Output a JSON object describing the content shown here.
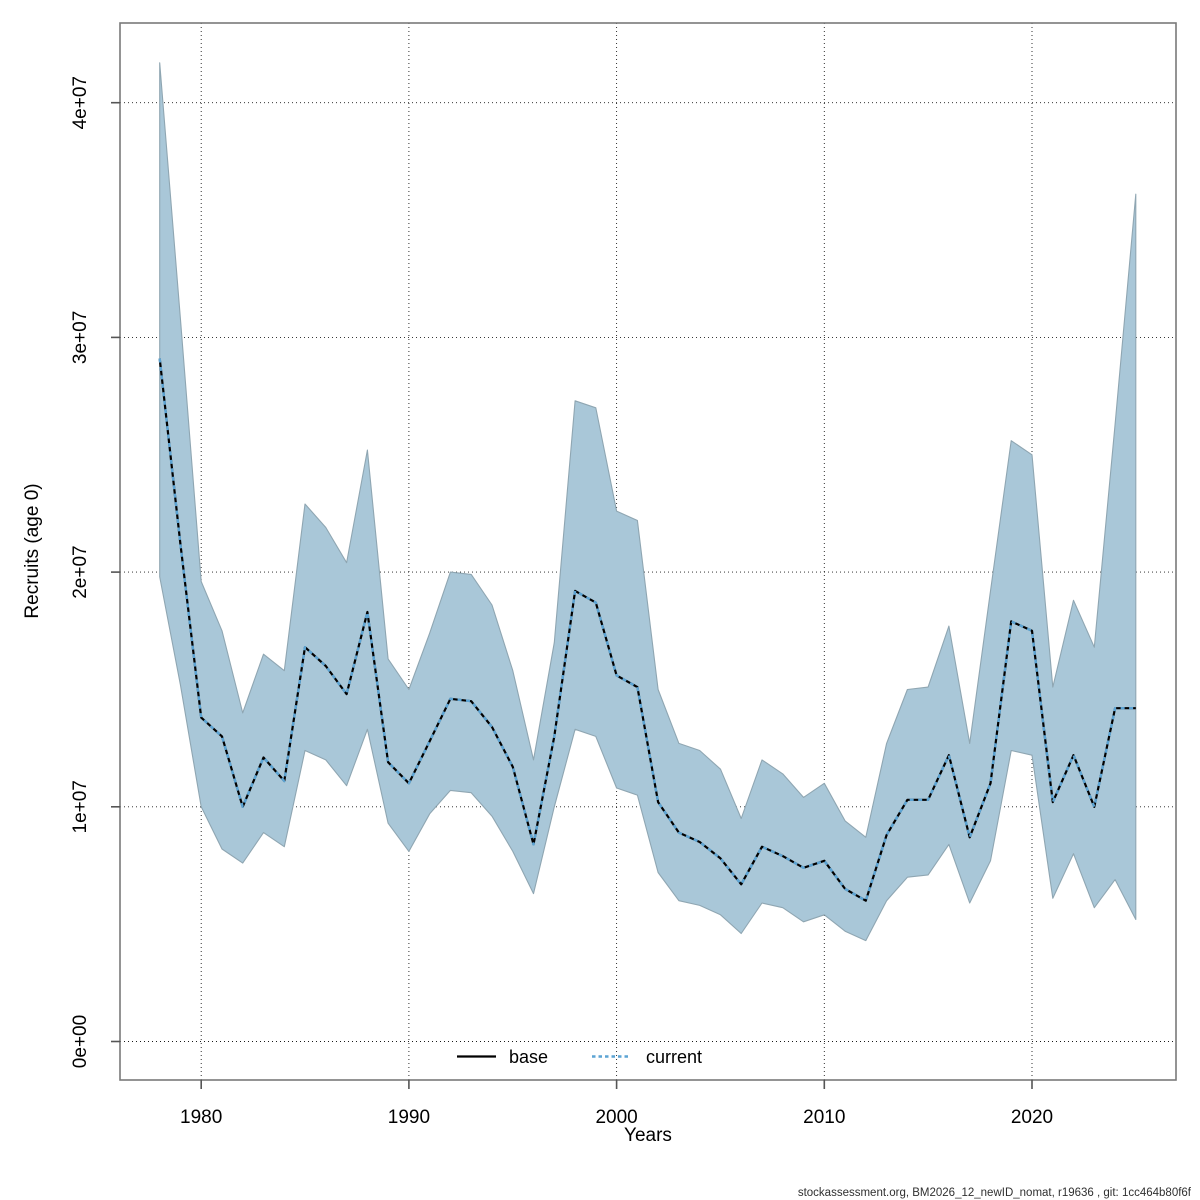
{
  "figure": {
    "background": "#ffffff",
    "footer_text": "stockassessment.org, BM2026_12_newID_nomat, r19636 , git: 1cc464b80f6f"
  },
  "axes": {
    "xlabel": "Years",
    "ylabel": "Recruits (age 0)",
    "x_tick_years": [
      1980,
      1990,
      2000,
      2010,
      2020
    ],
    "x_tick_labels": [
      "1980",
      "1990",
      "2000",
      "2010",
      "2020"
    ],
    "y_tick_millions": [
      0,
      10,
      20,
      30,
      40
    ],
    "y_tick_labels": [
      "0e+00",
      "1e+07",
      "2e+07",
      "3e+07",
      "4e+07"
    ]
  },
  "legend": {
    "items": [
      {
        "label": "base",
        "line_style": "solid",
        "color": "#000000"
      },
      {
        "label": "current",
        "line_style": "dotted",
        "color": "#5ca4d4"
      }
    ]
  },
  "colors": {
    "band_fill": "#a9c7d8",
    "band_edge": "#8fa6b2",
    "grid": "#1a1a1a",
    "box": "#7a7a7a",
    "tick": "#555555",
    "base_line": "#000000",
    "current_line": "#5ca4d4"
  },
  "chart_data": {
    "type": "line",
    "title": "",
    "xlabel": "Years",
    "ylabel": "Recruits (age 0)",
    "x_range_years": [
      1976.1,
      2026.9
    ],
    "y_range": [
      -1600000,
      43400000
    ],
    "grid": true,
    "legend_position": "bottom-center",
    "units": "recruits (values in millions, i.e. 29.1 = 2.91e7)",
    "years": [
      1978,
      1979,
      1980,
      1981,
      1982,
      1983,
      1984,
      1985,
      1986,
      1987,
      1988,
      1989,
      1990,
      1991,
      1992,
      1993,
      1994,
      1995,
      1996,
      1997,
      1998,
      1999,
      2000,
      2001,
      2002,
      2003,
      2004,
      2005,
      2006,
      2007,
      2008,
      2009,
      2010,
      2011,
      2012,
      2013,
      2014,
      2015,
      2016,
      2017,
      2018,
      2019,
      2020,
      2021,
      2022,
      2023,
      2024,
      2025
    ],
    "series": [
      {
        "name": "base",
        "style": "solid-black",
        "note": "visually coincident with current median (overplotted)"
      },
      {
        "name": "current",
        "style": "dotted-blue",
        "median_millions": [
          29.1,
          21.2,
          13.8,
          13.0,
          10.0,
          12.1,
          11.1,
          16.8,
          16.0,
          14.8,
          18.3,
          11.9,
          11.0,
          12.8,
          14.6,
          14.5,
          13.4,
          11.7,
          8.4,
          13.0,
          19.2,
          18.7,
          15.6,
          15.1,
          10.2,
          8.9,
          8.5,
          7.8,
          6.7,
          8.3,
          7.9,
          7.4,
          7.7,
          6.5,
          6.0,
          8.8,
          10.3,
          10.3,
          12.2,
          8.7,
          11.0,
          17.9,
          17.5,
          10.2,
          12.2,
          10.0,
          14.2,
          14.2
        ],
        "ci_lower_millions": [
          19.8,
          15.2,
          10.0,
          8.2,
          7.6,
          8.9,
          8.3,
          12.4,
          12.0,
          10.9,
          13.3,
          9.3,
          8.1,
          9.7,
          10.7,
          10.6,
          9.6,
          8.1,
          6.3,
          10.0,
          13.3,
          13.0,
          10.8,
          10.5,
          7.2,
          6.0,
          5.8,
          5.4,
          4.6,
          5.9,
          5.7,
          5.1,
          5.4,
          4.7,
          4.3,
          6.0,
          7.0,
          7.1,
          8.4,
          5.9,
          7.7,
          12.4,
          12.2,
          6.1,
          8.0,
          5.7,
          6.9,
          5.2
        ],
        "ci_upper_millions": [
          41.7,
          30.8,
          19.6,
          17.5,
          14.0,
          16.5,
          15.8,
          22.9,
          21.9,
          20.4,
          25.2,
          16.3,
          15.0,
          17.4,
          20.0,
          19.9,
          18.6,
          15.8,
          12.0,
          17.0,
          27.3,
          27.0,
          22.6,
          22.2,
          15.0,
          12.7,
          12.4,
          11.6,
          9.5,
          12.0,
          11.4,
          10.4,
          11.0,
          9.4,
          8.7,
          12.7,
          15.0,
          15.1,
          17.7,
          12.7,
          19.2,
          25.6,
          25.0,
          15.1,
          18.8,
          16.8,
          26.3,
          36.1
        ]
      }
    ]
  }
}
